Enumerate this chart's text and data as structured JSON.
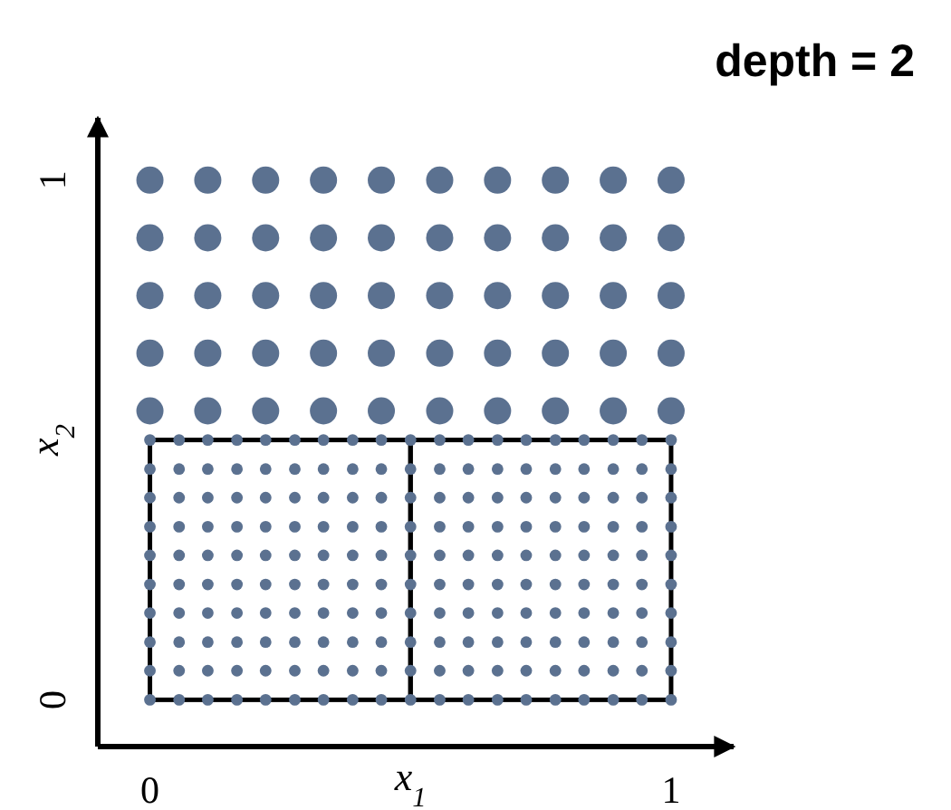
{
  "chart_data": {
    "type": "scatter",
    "title": "depth = 2",
    "xlabel": "x$_{1}$",
    "ylabel": "x$_{2}$",
    "xlim": [
      -0.1,
      1.12
    ],
    "ylim": [
      -0.09,
      1.12
    ],
    "xticks": [
      0,
      1
    ],
    "yticks": [
      0,
      1
    ],
    "marker": "circle",
    "series": [
      {
        "color": "#5b7190",
        "x": [
          0,
          0.111,
          0.222,
          0.333,
          0.444,
          0.556,
          0.667,
          0.778,
          0.889,
          1,
          0,
          0.111,
          0.222,
          0.333,
          0.444,
          0.556,
          0.667,
          0.778,
          0.889,
          1,
          0,
          0.111,
          0.222,
          0.333,
          0.444,
          0.556,
          0.667,
          0.778,
          0.889,
          1,
          0,
          0.111,
          0.222,
          0.333,
          0.444,
          0.556,
          0.667,
          0.778,
          0.889,
          1,
          0,
          0.111,
          0.222,
          0.333,
          0.444,
          0.556,
          0.667,
          0.778,
          0.889,
          1
        ],
        "values": [
          1,
          1,
          1,
          1,
          1,
          1,
          1,
          1,
          1,
          1,
          0.889,
          0.889,
          0.889,
          0.889,
          0.889,
          0.889,
          0.889,
          0.889,
          0.889,
          0.889,
          0.778,
          0.778,
          0.778,
          0.778,
          0.778,
          0.778,
          0.778,
          0.778,
          0.778,
          0.778,
          0.667,
          0.667,
          0.667,
          0.667,
          0.667,
          0.667,
          0.667,
          0.667,
          0.667,
          0.667,
          0.556,
          0.556,
          0.556,
          0.556,
          0.556,
          0.556,
          0.556,
          0.556,
          0.556,
          0.556
        ]
      },
      {
        "color": "#5b7190",
        "x": [
          0,
          0.056,
          0.111,
          0.167,
          0.222,
          0.278,
          0.333,
          0.389,
          0.444,
          0.5,
          0.556,
          0.611,
          0.667,
          0.722,
          0.778,
          0.833,
          0.889,
          0.944,
          1,
          0,
          0.056,
          0.111,
          0.167,
          0.222,
          0.278,
          0.333,
          0.389,
          0.444,
          0.5,
          0.556,
          0.611,
          0.667,
          0.722,
          0.778,
          0.833,
          0.889,
          0.944,
          1,
          0,
          0.056,
          0.111,
          0.167,
          0.222,
          0.278,
          0.333,
          0.389,
          0.444,
          0.5,
          0.556,
          0.611,
          0.667,
          0.722,
          0.778,
          0.833,
          0.889,
          0.944,
          1,
          0,
          0.056,
          0.111,
          0.167,
          0.222,
          0.278,
          0.333,
          0.389,
          0.444,
          0.5,
          0.556,
          0.611,
          0.667,
          0.722,
          0.778,
          0.833,
          0.889,
          0.944,
          1,
          0,
          0.056,
          0.111,
          0.167,
          0.222,
          0.278,
          0.333,
          0.389,
          0.444,
          0.5,
          0.556,
          0.611,
          0.667,
          0.722,
          0.778,
          0.833,
          0.889,
          0.944,
          1,
          0,
          0.056,
          0.111,
          0.167,
          0.222,
          0.278,
          0.333,
          0.389,
          0.444,
          0.5,
          0.556,
          0.611,
          0.667,
          0.722,
          0.778,
          0.833,
          0.889,
          0.944,
          1,
          0,
          0.056,
          0.111,
          0.167,
          0.222,
          0.278,
          0.333,
          0.389,
          0.444,
          0.5,
          0.556,
          0.611,
          0.667,
          0.722,
          0.778,
          0.833,
          0.889,
          0.944,
          1,
          0,
          0.056,
          0.111,
          0.167,
          0.222,
          0.278,
          0.333,
          0.389,
          0.444,
          0.5,
          0.556,
          0.611,
          0.667,
          0.722,
          0.778,
          0.833,
          0.889,
          0.944,
          1,
          0,
          0.056,
          0.111,
          0.167,
          0.222,
          0.278,
          0.333,
          0.389,
          0.444,
          0.5,
          0.556,
          0.611,
          0.667,
          0.722,
          0.778,
          0.833,
          0.889,
          0.944,
          1,
          0,
          0.056,
          0.111,
          0.167,
          0.222,
          0.278,
          0.333,
          0.389,
          0.444,
          0.5,
          0.556,
          0.611,
          0.667,
          0.722,
          0.778,
          0.833,
          0.889,
          0.944,
          1
        ],
        "values": [
          0.5,
          0.5,
          0.5,
          0.5,
          0.5,
          0.5,
          0.5,
          0.5,
          0.5,
          0.5,
          0.5,
          0.5,
          0.5,
          0.5,
          0.5,
          0.5,
          0.5,
          0.5,
          0.5,
          0.444,
          0.444,
          0.444,
          0.444,
          0.444,
          0.444,
          0.444,
          0.444,
          0.444,
          0.444,
          0.444,
          0.444,
          0.444,
          0.444,
          0.444,
          0.444,
          0.444,
          0.444,
          0.444,
          0.389,
          0.389,
          0.389,
          0.389,
          0.389,
          0.389,
          0.389,
          0.389,
          0.389,
          0.389,
          0.389,
          0.389,
          0.389,
          0.389,
          0.389,
          0.389,
          0.389,
          0.389,
          0.389,
          0.333,
          0.333,
          0.333,
          0.333,
          0.333,
          0.333,
          0.333,
          0.333,
          0.333,
          0.333,
          0.333,
          0.333,
          0.333,
          0.333,
          0.333,
          0.333,
          0.333,
          0.333,
          0.333,
          0.278,
          0.278,
          0.278,
          0.278,
          0.278,
          0.278,
          0.278,
          0.278,
          0.278,
          0.278,
          0.278,
          0.278,
          0.278,
          0.278,
          0.278,
          0.278,
          0.278,
          0.278,
          0.278,
          0.222,
          0.222,
          0.222,
          0.222,
          0.222,
          0.222,
          0.222,
          0.222,
          0.222,
          0.222,
          0.222,
          0.222,
          0.222,
          0.222,
          0.222,
          0.222,
          0.222,
          0.222,
          0.222,
          0.167,
          0.167,
          0.167,
          0.167,
          0.167,
          0.167,
          0.167,
          0.167,
          0.167,
          0.167,
          0.167,
          0.167,
          0.167,
          0.167,
          0.167,
          0.167,
          0.167,
          0.167,
          0.167,
          0.111,
          0.111,
          0.111,
          0.111,
          0.111,
          0.111,
          0.111,
          0.111,
          0.111,
          0.111,
          0.111,
          0.111,
          0.111,
          0.111,
          0.111,
          0.111,
          0.111,
          0.111,
          0.111,
          0.056,
          0.056,
          0.056,
          0.056,
          0.056,
          0.056,
          0.056,
          0.056,
          0.056,
          0.056,
          0.056,
          0.056,
          0.056,
          0.056,
          0.056,
          0.056,
          0.056,
          0.056,
          0.056,
          0,
          0,
          0,
          0,
          0,
          0,
          0,
          0,
          0,
          0,
          0,
          0,
          0,
          0,
          0,
          0,
          0,
          0,
          0
        ]
      }
    ]
  }
}
